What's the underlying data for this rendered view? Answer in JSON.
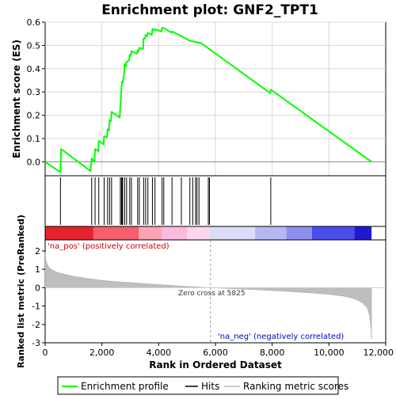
{
  "chart_data": {
    "type": "line",
    "title": "Enrichment plot: GNF2_TPT1",
    "es_panel": {
      "ylabel": "Enrichment score (ES)",
      "ylim": [
        -0.06,
        0.6
      ],
      "yticks": [
        "0.6",
        "0.5",
        "0.4",
        "0.3",
        "0.2",
        "0.1",
        "0.0"
      ],
      "ytick_values": [
        0.6,
        0.5,
        0.4,
        0.3,
        0.2,
        0.1,
        0.0
      ],
      "series": [
        {
          "name": "Enrichment profile",
          "color": "#00ff00",
          "x": [
            0,
            540,
            560,
            1600,
            1640,
            1740,
            1760,
            1870,
            1890,
            2060,
            2080,
            2180,
            2200,
            2250,
            2270,
            2320,
            2340,
            2630,
            2650,
            2670,
            2690,
            2710,
            2730,
            2780,
            2800,
            2850,
            2870,
            2960,
            2980,
            3020,
            3040,
            3240,
            3260,
            3300,
            3320,
            3450,
            3470,
            3520,
            3540,
            3600,
            3620,
            3760,
            3780,
            3850,
            3870,
            4100,
            4120,
            4180,
            4450,
            4470,
            4800,
            5100,
            5300,
            5500,
            7930,
            7950,
            11500
          ],
          "y": [
            0.0,
            -0.045,
            0.055,
            -0.04,
            0.015,
            0.0,
            0.055,
            0.045,
            0.09,
            0.075,
            0.11,
            0.105,
            0.14,
            0.135,
            0.18,
            0.175,
            0.215,
            0.19,
            0.245,
            0.27,
            0.32,
            0.345,
            0.34,
            0.375,
            0.42,
            0.41,
            0.43,
            0.435,
            0.46,
            0.455,
            0.475,
            0.465,
            0.48,
            0.475,
            0.49,
            0.485,
            0.53,
            0.53,
            0.545,
            0.54,
            0.555,
            0.545,
            0.57,
            0.565,
            0.57,
            0.56,
            0.575,
            0.575,
            0.555,
            0.56,
            0.54,
            0.52,
            0.515,
            0.51,
            0.295,
            0.31,
            0.0
          ]
        }
      ]
    },
    "hits_panel": {
      "hit_positions": [
        540,
        1640,
        1760,
        1890,
        2080,
        2200,
        2270,
        2340,
        2650,
        2690,
        2710,
        2730,
        2800,
        2870,
        2980,
        3040,
        3260,
        3320,
        3470,
        3540,
        3620,
        3780,
        3870,
        4120,
        4180,
        4470,
        4800,
        5100,
        5200,
        5300,
        5350,
        5420,
        5750,
        5790,
        7950
      ],
      "heatmap_colors": [
        {
          "from": 0,
          "to": 1700,
          "color": "#e8222c"
        },
        {
          "from": 1700,
          "to": 3300,
          "color": "#f65f6b"
        },
        {
          "from": 3300,
          "to": 4100,
          "color": "#fca2b2"
        },
        {
          "from": 4100,
          "to": 5000,
          "color": "#fdbadf"
        },
        {
          "from": 5000,
          "to": 5825,
          "color": "#fcd6ee"
        },
        {
          "from": 5825,
          "to": 7400,
          "color": "#dcdcf8"
        },
        {
          "from": 7400,
          "to": 8500,
          "color": "#b6b7f2"
        },
        {
          "from": 8500,
          "to": 9400,
          "color": "#8e90ef"
        },
        {
          "from": 9400,
          "to": 10900,
          "color": "#4a4dea"
        },
        {
          "from": 10900,
          "to": 11500,
          "color": "#1f1ad0"
        }
      ]
    },
    "metric_panel": {
      "ylabel": "Ranked list metric (PreRanked)",
      "ylim": [
        -3,
        2.6
      ],
      "yticks": [
        "2",
        "1",
        "0",
        "-1",
        "-2",
        "-3"
      ],
      "ytick_values": [
        2,
        1,
        0,
        -1,
        -2,
        -3
      ],
      "metric_x": [
        0,
        30,
        100,
        200,
        400,
        700,
        1000,
        1500,
        2000,
        2500,
        3000,
        3500,
        4000,
        4500,
        5000,
        5500,
        5825,
        6500,
        7000,
        7500,
        8000,
        8500,
        9000,
        9500,
        10000,
        10500,
        10800,
        11000,
        11200,
        11350,
        11430,
        11480,
        11500
      ],
      "metric_y": [
        1.9,
        1.45,
        1.2,
        1.0,
        0.85,
        0.72,
        0.62,
        0.5,
        0.4,
        0.33,
        0.28,
        0.22,
        0.17,
        0.12,
        0.07,
        0.03,
        0.0,
        -0.05,
        -0.08,
        -0.12,
        -0.16,
        -0.2,
        -0.25,
        -0.3,
        -0.37,
        -0.46,
        -0.56,
        -0.67,
        -0.85,
        -1.1,
        -1.5,
        -2.2,
        -2.8
      ],
      "zero_cross_label": "Zero cross at 5825",
      "zero_cross": 5825,
      "pos_label": "'na_pos' (positively correlated)",
      "neg_label": "'na_neg' (negatively correlated)"
    },
    "xlabel": "Rank in Ordered Dataset",
    "xlim": [
      0,
      12000
    ],
    "xticks": [
      "0",
      "2,000",
      "4,000",
      "6,000",
      "8,000",
      "10,000",
      "12,000"
    ],
    "xtick_values": [
      0,
      2000,
      4000,
      6000,
      8000,
      10000,
      12000
    ],
    "legend": {
      "position": "bottom",
      "items": [
        "Enrichment profile",
        "Hits",
        "Ranking metric scores"
      ]
    },
    "colors": {
      "profile": "#00ff00",
      "hits": "#000000",
      "metric_fill": "#bebebe",
      "pos_label": "#cc0000",
      "neg_label": "#0000cc"
    }
  }
}
